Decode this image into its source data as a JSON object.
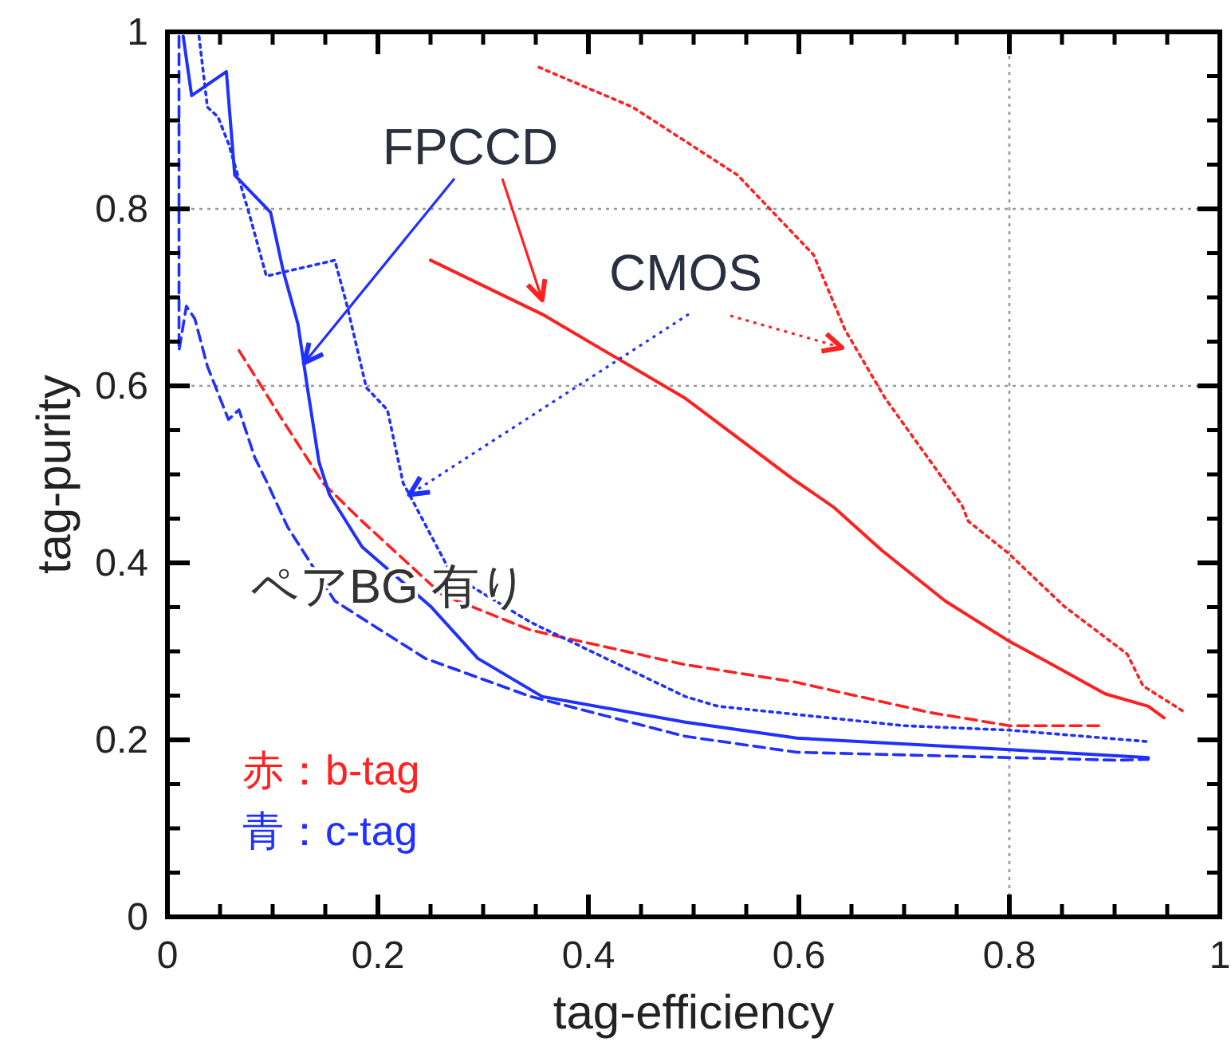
{
  "chart_data": {
    "type": "line",
    "xlabel": "tag-efficiency",
    "ylabel": "tag-purity",
    "xlim": [
      0,
      1
    ],
    "ylim": [
      0,
      1
    ],
    "xticks": [
      0,
      0.2,
      0.4,
      0.6,
      0.8,
      1
    ],
    "yticks": [
      0,
      0.2,
      0.4,
      0.6,
      0.8,
      1
    ],
    "grid": false,
    "marker": "none",
    "annotations": [
      {
        "text": "FPCCD",
        "x": 0.13,
        "y": 0.626
      },
      {
        "text": "CMOS",
        "x": 0.23,
        "y": 0.477
      },
      "ペアBG 有り",
      "赤：b-tag",
      "青：c-tag"
    ],
    "ref_lines": [
      {
        "axis": "y",
        "value": 0.8,
        "color": "#999999",
        "line_style": "dotted"
      },
      {
        "axis": "y",
        "value": 0.6,
        "color": "#999999",
        "line_style": "dotted"
      },
      {
        "axis": "x",
        "value": 0.8,
        "color": "#999999",
        "line_style": "dotted"
      }
    ],
    "series": [
      {
        "color": "#ff2020",
        "line_style": "solid",
        "x": [
          0.25,
          0.356,
          0.492,
          0.594,
          0.633,
          0.679,
          0.739,
          0.799,
          0.841,
          0.891,
          0.932,
          0.947
        ],
        "values": [
          0.742,
          0.681,
          0.586,
          0.495,
          0.463,
          0.414,
          0.357,
          0.312,
          0.285,
          0.252,
          0.238,
          0.225
        ]
      },
      {
        "color": "#ff2020",
        "line_style": "dotted",
        "x": [
          0.353,
          0.442,
          0.542,
          0.614,
          0.644,
          0.682,
          0.755,
          0.761,
          0.799,
          0.852,
          0.912,
          0.927,
          0.967
        ],
        "values": [
          0.96,
          0.915,
          0.838,
          0.748,
          0.663,
          0.586,
          0.465,
          0.447,
          0.411,
          0.351,
          0.297,
          0.261,
          0.231
        ]
      },
      {
        "color": "#ff2020",
        "line_style": "dashed",
        "x": [
          0.068,
          0.109,
          0.148,
          0.185,
          0.261,
          0.345,
          0.492,
          0.598,
          0.724,
          0.8,
          0.891
        ],
        "values": [
          0.64,
          0.562,
          0.49,
          0.447,
          0.364,
          0.324,
          0.285,
          0.265,
          0.231,
          0.216,
          0.216
        ]
      },
      {
        "color": "#2030ff",
        "line_style": "solid",
        "x": [
          0.015,
          0.023,
          0.056,
          0.064,
          0.086,
          0.098,
          0.11,
          0.124,
          0.133,
          0.144,
          0.154,
          0.185,
          0.25,
          0.295,
          0.356,
          0.492,
          0.598,
          0.8,
          0.932
        ],
        "values": [
          0.995,
          0.928,
          0.955,
          0.838,
          0.811,
          0.796,
          0.73,
          0.67,
          0.598,
          0.514,
          0.477,
          0.418,
          0.351,
          0.292,
          0.249,
          0.22,
          0.202,
          0.189,
          0.18
        ]
      },
      {
        "color": "#2030ff",
        "line_style": "dashed",
        "x": [
          0.011,
          0.011,
          0.018,
          0.026,
          0.038,
          0.058,
          0.068,
          0.083,
          0.095,
          0.114,
          0.159,
          0.245,
          0.345,
          0.492,
          0.598,
          0.902,
          0.932
        ],
        "values": [
          0.995,
          0.64,
          0.69,
          0.676,
          0.622,
          0.562,
          0.573,
          0.519,
          0.49,
          0.441,
          0.357,
          0.292,
          0.249,
          0.204,
          0.186,
          0.177,
          0.178
        ]
      },
      {
        "color": "#2030ff",
        "line_style": "dotted",
        "x": [
          0.03,
          0.038,
          0.048,
          0.058,
          0.079,
          0.094,
          0.159,
          0.17,
          0.189,
          0.209,
          0.224,
          0.23,
          0.27,
          0.345,
          0.492,
          0.523,
          0.7,
          0.8,
          0.932
        ],
        "values": [
          0.995,
          0.915,
          0.904,
          0.874,
          0.789,
          0.724,
          0.742,
          0.694,
          0.598,
          0.573,
          0.49,
          0.477,
          0.387,
          0.333,
          0.249,
          0.238,
          0.216,
          0.211,
          0.198
        ]
      }
    ]
  }
}
